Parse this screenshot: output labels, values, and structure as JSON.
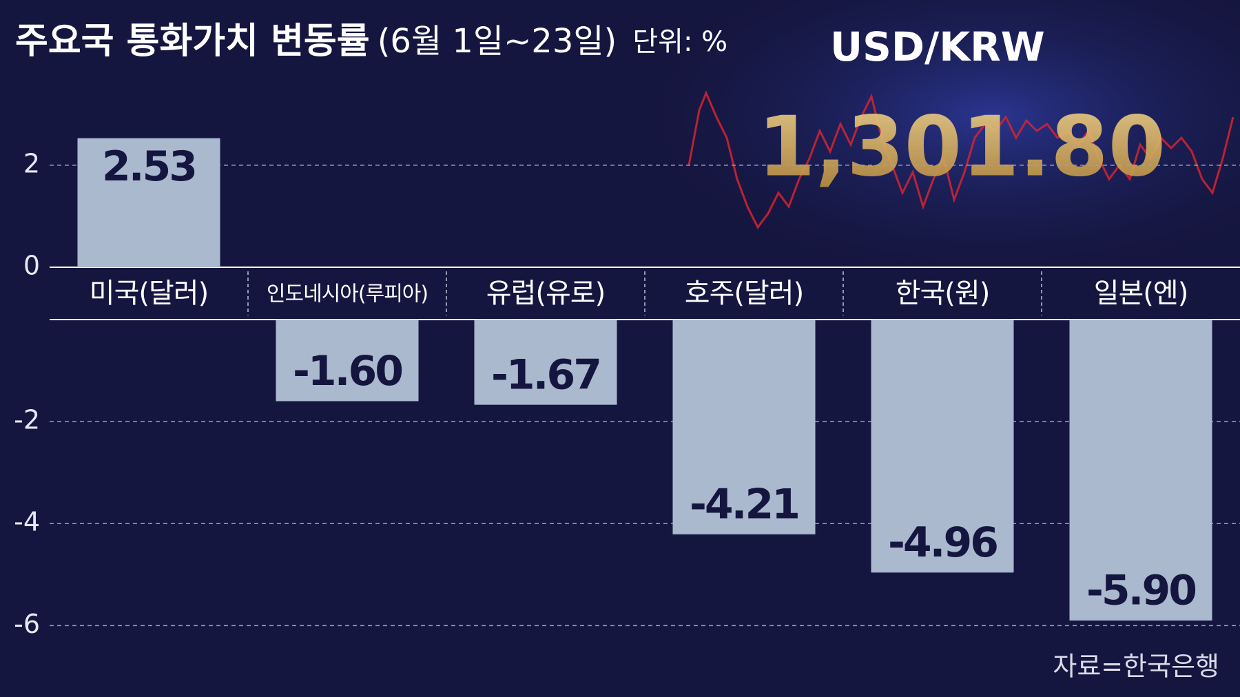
{
  "chart_data": {
    "type": "bar",
    "title": "주요국 통화가치 변동률",
    "subtitle": "(6월 1일~23일)",
    "unit": "단위: %",
    "source": "자료=한국은행",
    "background_texts": [
      "USD/KRW",
      "1,301.80"
    ],
    "categories": [
      "미국(달러)",
      "인도네시아(루피아)",
      "유럽(유로)",
      "호주(달러)",
      "한국(원)",
      "일본(엔)"
    ],
    "values": [
      2.53,
      -1.6,
      -1.67,
      -4.21,
      -4.96,
      -5.9
    ],
    "value_labels": [
      "2.53",
      "-1.60",
      "-1.67",
      "-4.21",
      "-4.96",
      "-5.90"
    ],
    "color": "#abb9cf",
    "ylim": [
      -7.4,
      3.7
    ],
    "yticks": [
      2,
      0,
      -2,
      -4,
      -6
    ],
    "grid": true
  }
}
